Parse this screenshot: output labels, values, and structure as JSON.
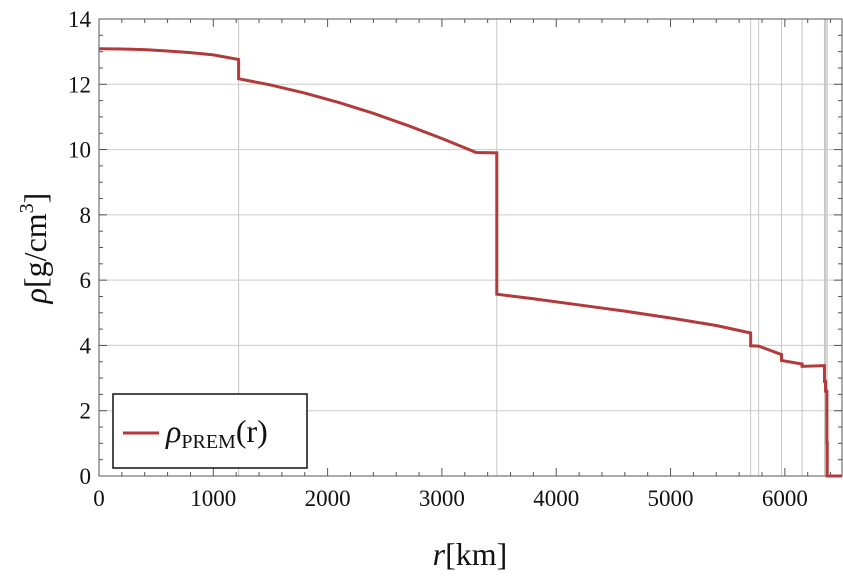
{
  "chart_data": {
    "type": "line",
    "xlabel_symbol": "r",
    "xlabel_unit": "[km]",
    "ylabel_symbol": "ρ",
    "ylabel_unit": "[g/cm",
    "ylabel_unit_sup": "3",
    "ylabel_unit_close": "]",
    "xlim": [
      0,
      6500
    ],
    "ylim": [
      0,
      14
    ],
    "xticks": [
      0,
      1000,
      2000,
      3000,
      4000,
      5000,
      6000
    ],
    "yticks": [
      0,
      2,
      4,
      6,
      8,
      10,
      12,
      14
    ],
    "grid": true,
    "vertical_gridlines": [
      1221.5,
      3480,
      5701,
      5771,
      5971,
      6151,
      6346.6,
      6356,
      6368,
      6371
    ],
    "legend": {
      "placement": "bottom-left",
      "symbol": "ρ",
      "subscript": "PREM",
      "arg": "(r)"
    },
    "series": [
      {
        "color": "#b33a3a",
        "x": [
          0,
          200,
          400,
          600,
          800,
          1000,
          1221.5,
          1221.5,
          1500,
          1800,
          2100,
          2400,
          2700,
          3000,
          3300,
          3480,
          3480,
          3800,
          4200,
          4600,
          5000,
          5400,
          5701,
          5701,
          5771,
          5771,
          5971,
          5971,
          6151,
          6151,
          6346.6,
          6346.6,
          6356,
          6356,
          6368,
          6368,
          6371,
          6371,
          6500
        ],
        "y": [
          13.09,
          13.08,
          13.06,
          13.02,
          12.97,
          12.9,
          12.76,
          12.17,
          11.98,
          11.73,
          11.44,
          11.11,
          10.74,
          10.34,
          9.91,
          9.9,
          5.57,
          5.43,
          5.24,
          5.05,
          4.84,
          4.61,
          4.38,
          3.99,
          3.98,
          3.98,
          3.72,
          3.54,
          3.43,
          3.36,
          3.38,
          2.9,
          2.9,
          2.6,
          2.6,
          1.02,
          1.02,
          0,
          0
        ]
      }
    ]
  }
}
